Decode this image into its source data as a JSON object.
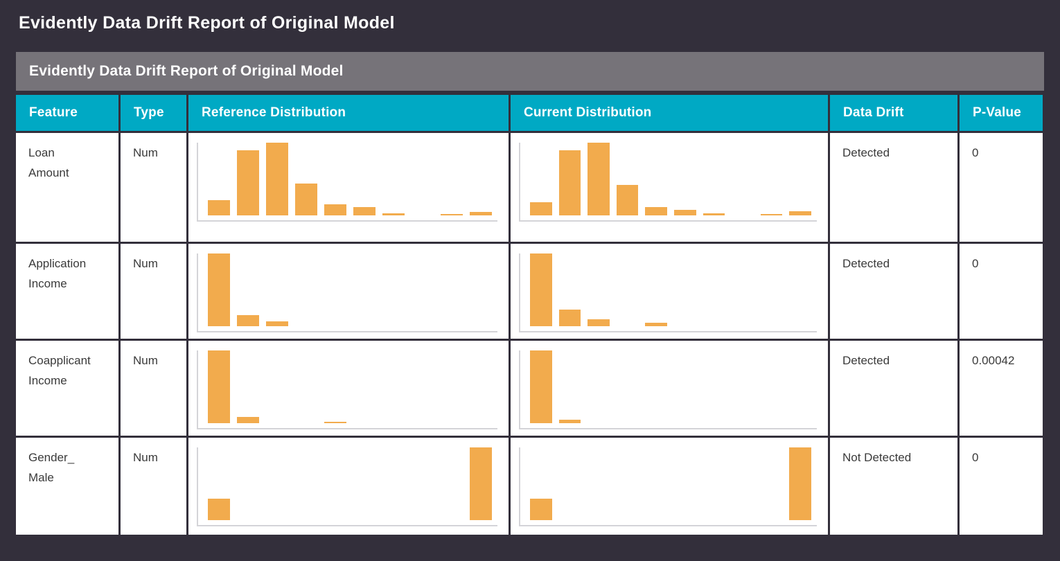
{
  "page_title": "Evidently Data Drift Report of Original Model",
  "banner_title": "Evidently Data Drift Report of Original Model",
  "colors": {
    "background_dark": "#332F3B",
    "banner_gray": "#767379",
    "header_cyan": "#00A9C4",
    "bar_orange": "#F2AB4D",
    "axis_gray": "#D4D4D8"
  },
  "table": {
    "headers": [
      "Feature",
      "Type",
      "Reference Distribution",
      "Current Distribution",
      "Data Drift",
      "P-Value"
    ],
    "rows": [
      {
        "feature": "Loan\nAmount",
        "type": "Num",
        "drift": "Detected",
        "p_value": "0"
      },
      {
        "feature": "Application\nIncome",
        "type": "Num",
        "drift": "Detected",
        "p_value": "0"
      },
      {
        "feature": "Coapplicant\nIncome",
        "type": "Num",
        "drift": "Detected",
        "p_value": "0.00042"
      },
      {
        "feature": "Gender_\nMale",
        "type": "Num",
        "drift": "Not Detected",
        "p_value": "0"
      }
    ]
  },
  "chart_data": [
    {
      "type": "bar",
      "title": "Loan Amount distribution",
      "bins": 10,
      "xlabel": "",
      "ylabel": "",
      "ylim": [
        0,
        1
      ],
      "grid": false,
      "series": [
        {
          "name": "reference",
          "values": [
            0.21,
            0.9,
            1.0,
            0.44,
            0.15,
            0.11,
            0.03,
            0,
            0.02,
            0.05
          ]
        },
        {
          "name": "current",
          "values": [
            0.18,
            0.9,
            1.0,
            0.42,
            0.11,
            0.08,
            0.025,
            0,
            0.02,
            0.055
          ]
        }
      ]
    },
    {
      "type": "bar",
      "title": "Application Income distribution",
      "bins": 10,
      "xlabel": "",
      "ylabel": "",
      "ylim": [
        0,
        1
      ],
      "grid": false,
      "series": [
        {
          "name": "reference",
          "values": [
            1.0,
            0.15,
            0.07,
            0,
            0,
            0,
            0,
            0,
            0,
            0
          ]
        },
        {
          "name": "current",
          "values": [
            1.0,
            0.23,
            0.1,
            0,
            0.045,
            0,
            0,
            0,
            0,
            0
          ]
        }
      ]
    },
    {
      "type": "bar",
      "title": "Coapplicant Income distribution",
      "bins": 10,
      "xlabel": "",
      "ylabel": "",
      "ylim": [
        0,
        1
      ],
      "grid": false,
      "series": [
        {
          "name": "reference",
          "values": [
            1.0,
            0.085,
            0,
            0,
            0.015,
            0,
            0,
            0,
            0,
            0
          ]
        },
        {
          "name": "current",
          "values": [
            1.0,
            0.045,
            0,
            0,
            0,
            0,
            0,
            0,
            0,
            0
          ]
        }
      ]
    },
    {
      "type": "bar",
      "title": "Gender_Male distribution",
      "bins": 10,
      "xlabel": "",
      "ylabel": "",
      "ylim": [
        0,
        1
      ],
      "grid": false,
      "series": [
        {
          "name": "reference",
          "values": [
            0.3,
            0,
            0,
            0,
            0,
            0,
            0,
            0,
            0,
            1.0
          ]
        },
        {
          "name": "current",
          "values": [
            0.3,
            0,
            0,
            0,
            0,
            0,
            0,
            0,
            0,
            1.0
          ]
        }
      ]
    }
  ]
}
